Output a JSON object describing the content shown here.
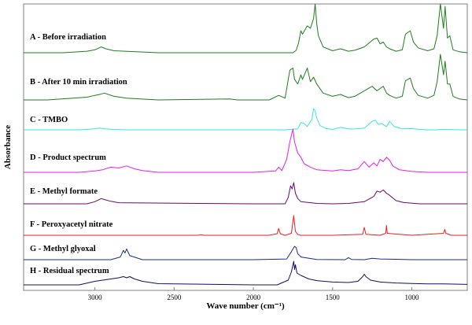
{
  "chart_data": {
    "type": "line",
    "title": "",
    "xlabel": "Wave number (cm⁻¹)",
    "ylabel": "Absorbance",
    "xlim": [
      3450,
      650
    ],
    "x_reversed": true,
    "xticks": [
      3000,
      2500,
      2000,
      1500,
      1000
    ],
    "grid": false,
    "series": [
      {
        "name": "A - Before irradiation",
        "color": "#1e7d1e",
        "x": [
          3450,
          3200,
          3050,
          3000,
          2960,
          2930,
          2880,
          2600,
          2000,
          1750,
          1730,
          1715,
          1700,
          1690,
          1660,
          1640,
          1620,
          1610,
          1600,
          1590,
          1560,
          1500,
          1450,
          1400,
          1360,
          1300,
          1240,
          1220,
          1200,
          1180,
          1160,
          1140,
          1100,
          1060,
          1040,
          1010,
          990,
          960,
          900,
          860,
          840,
          820,
          800,
          790,
          775,
          760,
          740,
          700,
          650
        ],
        "y": [
          0.0,
          0.0,
          0.03,
          0.06,
          0.12,
          0.08,
          0.04,
          0.0,
          0.0,
          0.0,
          0.05,
          0.2,
          0.45,
          0.38,
          0.55,
          0.5,
          0.7,
          1.0,
          0.6,
          0.35,
          0.12,
          0.04,
          0.08,
          0.03,
          0.05,
          0.12,
          0.28,
          0.3,
          0.18,
          0.22,
          0.12,
          0.08,
          0.03,
          0.06,
          0.38,
          0.45,
          0.22,
          0.1,
          0.04,
          0.08,
          0.35,
          1.0,
          0.5,
          0.95,
          0.3,
          0.35,
          0.06,
          0.02,
          0.0
        ]
      },
      {
        "name": "B - After 10 min irradiation",
        "color": "#1e7d1e",
        "x": [
          3450,
          3300,
          3050,
          3000,
          2970,
          2940,
          2880,
          2800,
          2600,
          2150,
          2100,
          1900,
          1840,
          1800,
          1770,
          1750,
          1740,
          1720,
          1700,
          1690,
          1660,
          1640,
          1620,
          1600,
          1560,
          1500,
          1450,
          1400,
          1360,
          1300,
          1250,
          1220,
          1180,
          1160,
          1140,
          1100,
          1060,
          1040,
          1010,
          990,
          960,
          900,
          860,
          840,
          820,
          800,
          790,
          775,
          760,
          740,
          700,
          650
        ],
        "y": [
          0.0,
          0.0,
          0.06,
          0.1,
          0.12,
          0.15,
          0.08,
          0.04,
          0.0,
          0.02,
          0.0,
          0.0,
          0.1,
          0.04,
          0.65,
          0.7,
          0.45,
          0.35,
          0.55,
          0.45,
          0.7,
          0.4,
          0.5,
          0.35,
          0.15,
          0.08,
          0.12,
          0.05,
          0.08,
          0.2,
          0.3,
          0.2,
          0.3,
          0.15,
          0.1,
          0.04,
          0.08,
          0.42,
          0.48,
          0.25,
          0.1,
          0.04,
          0.1,
          0.4,
          1.0,
          0.55,
          0.85,
          0.35,
          0.35,
          0.08,
          0.02,
          0.0
        ]
      },
      {
        "name": "C - TMBO",
        "color": "#33e6e6",
        "x": [
          3450,
          3100,
          3000,
          2970,
          2940,
          2900,
          2800,
          2000,
          1800,
          1720,
          1700,
          1680,
          1660,
          1630,
          1620,
          1610,
          1600,
          1580,
          1540,
          1500,
          1450,
          1400,
          1350,
          1300,
          1250,
          1230,
          1210,
          1190,
          1160,
          1140,
          1110,
          1060,
          1000,
          950,
          900,
          850,
          800,
          700,
          650
        ],
        "y": [
          0.0,
          0.0,
          0.05,
          0.08,
          0.05,
          0.03,
          0.0,
          0.0,
          0.0,
          0.05,
          0.35,
          0.3,
          0.15,
          0.5,
          1.0,
          0.9,
          0.55,
          0.2,
          0.06,
          0.02,
          0.12,
          0.04,
          0.05,
          0.08,
          0.4,
          0.45,
          0.25,
          0.3,
          0.15,
          0.4,
          0.15,
          0.05,
          0.06,
          0.02,
          0.0,
          0.0,
          0.02,
          0.0,
          0.0
        ]
      },
      {
        "name": "D - Product spectrum",
        "color": "#e61ee6",
        "x": [
          3450,
          3100,
          3000,
          2950,
          2900,
          2850,
          2800,
          2750,
          2700,
          2600,
          2000,
          1860,
          1840,
          1820,
          1790,
          1770,
          1760,
          1750,
          1740,
          1720,
          1700,
          1680,
          1640,
          1600,
          1500,
          1450,
          1400,
          1340,
          1300,
          1270,
          1240,
          1220,
          1200,
          1180,
          1160,
          1140,
          1120,
          1080,
          1000,
          900,
          650
        ],
        "y": [
          0.0,
          0.0,
          0.03,
          0.06,
          0.12,
          0.1,
          0.15,
          0.08,
          0.04,
          0.0,
          0.0,
          0.03,
          0.12,
          0.04,
          0.3,
          0.7,
          0.85,
          1.0,
          0.7,
          0.45,
          0.35,
          0.2,
          0.12,
          0.06,
          0.03,
          0.06,
          0.04,
          0.08,
          0.25,
          0.12,
          0.22,
          0.15,
          0.3,
          0.25,
          0.35,
          0.28,
          0.15,
          0.06,
          0.02,
          0.0,
          0.0
        ]
      },
      {
        "name": "E - Methyl formate",
        "color": "#6a0a6a",
        "x": [
          3450,
          3050,
          3000,
          2960,
          2940,
          2900,
          2850,
          2000,
          1800,
          1780,
          1765,
          1755,
          1745,
          1735,
          1720,
          1700,
          1600,
          1500,
          1400,
          1300,
          1240,
          1220,
          1200,
          1180,
          1160,
          1140,
          1100,
          1050,
          950,
          650
        ],
        "y": [
          0.0,
          0.0,
          0.1,
          0.25,
          0.2,
          0.12,
          0.05,
          0.0,
          0.0,
          0.3,
          0.85,
          0.7,
          1.0,
          0.5,
          0.25,
          0.1,
          0.02,
          0.0,
          0.02,
          0.1,
          0.35,
          0.6,
          0.55,
          0.65,
          0.5,
          0.4,
          0.15,
          0.06,
          0.0,
          0.0
        ]
      },
      {
        "name": "F - Peroxyacetyl nitrate",
        "color": "#e62020",
        "x": [
          3450,
          2350,
          2330,
          2310,
          1900,
          1850,
          1840,
          1830,
          1800,
          1760,
          1745,
          1735,
          1720,
          1700,
          1500,
          1310,
          1300,
          1290,
          1200,
          1165,
          1160,
          1155,
          1000,
          800,
          792,
          785,
          750,
          700,
          650
        ],
        "y": [
          0.0,
          0.0,
          0.03,
          0.0,
          0.0,
          0.08,
          0.35,
          0.08,
          0.0,
          0.1,
          1.0,
          0.2,
          0.05,
          0.0,
          0.0,
          0.05,
          0.4,
          0.05,
          0.0,
          0.1,
          0.5,
          0.1,
          0.0,
          0.1,
          0.3,
          0.1,
          0.0,
          0.0,
          0.0
        ]
      },
      {
        "name": "G - Methyl glyoxal",
        "color": "#1a2a8a",
        "x": [
          3450,
          2900,
          2840,
          2820,
          2810,
          2800,
          2780,
          2700,
          2000,
          1790,
          1760,
          1740,
          1730,
          1720,
          1700,
          1600,
          1420,
          1400,
          1380,
          1300,
          1250,
          1200,
          1100,
          1000,
          900,
          650
        ],
        "y": [
          0.0,
          0.0,
          0.2,
          0.7,
          0.5,
          0.8,
          0.3,
          0.0,
          0.0,
          0.05,
          0.6,
          1.0,
          0.9,
          0.45,
          0.2,
          0.02,
          0.0,
          0.15,
          0.02,
          0.0,
          0.1,
          0.05,
          0.03,
          0.0,
          0.0,
          0.0
        ]
      },
      {
        "name": "H - Residual spectrum",
        "color": "#101060",
        "x": [
          3450,
          3100,
          3000,
          2950,
          2900,
          2850,
          2820,
          2800,
          2780,
          2750,
          2700,
          2600,
          2000,
          1850,
          1780,
          1760,
          1745,
          1740,
          1735,
          1725,
          1700,
          1650,
          1600,
          1500,
          1400,
          1340,
          1310,
          1300,
          1290,
          1260,
          1200,
          1100,
          1000,
          900,
          800,
          650
        ],
        "y": [
          0.0,
          0.0,
          0.15,
          0.2,
          0.25,
          0.3,
          0.35,
          0.3,
          0.35,
          0.25,
          0.15,
          0.05,
          0.0,
          0.0,
          0.2,
          0.55,
          1.0,
          0.65,
          0.85,
          0.5,
          0.4,
          0.25,
          0.18,
          0.12,
          0.1,
          0.15,
          0.35,
          0.45,
          0.35,
          0.2,
          0.12,
          0.08,
          0.06,
          0.04,
          0.04,
          0.02
        ]
      }
    ]
  }
}
